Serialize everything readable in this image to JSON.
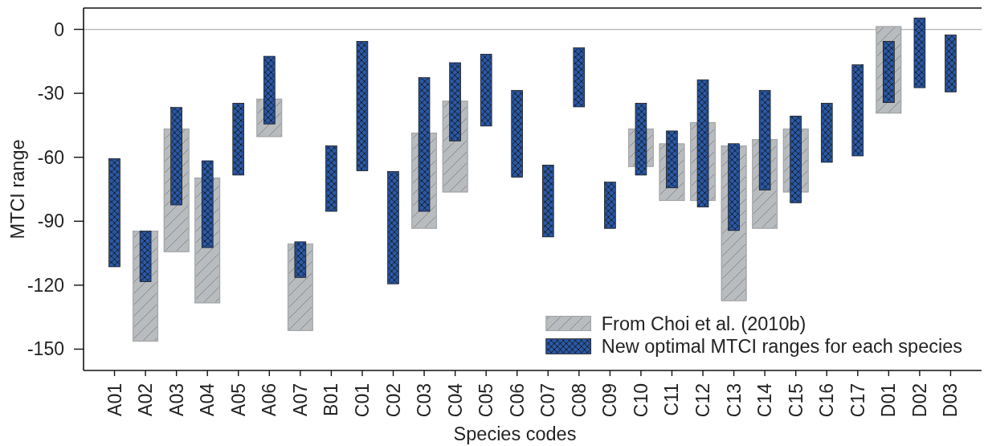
{
  "chart_data": {
    "type": "bar",
    "xlabel": "Species codes",
    "ylabel": "MTCI range",
    "categories": [
      "A01",
      "A02",
      "A03",
      "A04",
      "A05",
      "A06",
      "A07",
      "B01",
      "C01",
      "C02",
      "C03",
      "C04",
      "C05",
      "C06",
      "C07",
      "C08",
      "C09",
      "C10",
      "C11",
      "C12",
      "C13",
      "C14",
      "C15",
      "C16",
      "C17",
      "D01",
      "D02",
      "D03"
    ],
    "series": [
      {
        "name": "From Choi et al. (2010b)",
        "color": "#b9bcbf",
        "base": [
          null,
          -146,
          -104,
          -128,
          null,
          -50,
          -141,
          null,
          null,
          null,
          -93,
          -76,
          null,
          null,
          null,
          null,
          null,
          -64,
          -80,
          -80,
          -127,
          -93,
          -76,
          null,
          null,
          -39,
          null,
          null
        ],
        "values": [
          null,
          51,
          57,
          58,
          null,
          17,
          40,
          null,
          null,
          null,
          44,
          42,
          null,
          null,
          null,
          null,
          null,
          17,
          26,
          36,
          72,
          41,
          29,
          null,
          null,
          40,
          null,
          null
        ]
      },
      {
        "name": "New optimal MTCI ranges for each species",
        "color": "#2c5aa8",
        "base": [
          -111,
          -118,
          -82,
          -102,
          -68,
          -44,
          -116,
          -85,
          -66,
          -119,
          -85,
          -52,
          -45,
          -69,
          -97,
          -36,
          -93,
          -68,
          -74,
          -83,
          -94,
          -75,
          -81,
          -62,
          -59,
          -34,
          -27,
          -29
        ],
        "values": [
          50,
          23,
          45,
          40,
          33,
          31,
          16,
          30,
          60,
          52,
          62,
          36,
          33,
          40,
          33,
          27,
          21,
          33,
          26,
          59,
          40,
          46,
          40,
          27,
          42,
          28,
          32,
          26
        ]
      }
    ],
    "ylim": [
      -160,
      10
    ],
    "yticks": [
      0,
      -30,
      -60,
      -90,
      -120,
      -150
    ],
    "legend": "bottom right",
    "ref_lines": [
      {
        "axis": "y",
        "value": 0,
        "color": "#b3b3b3"
      }
    ]
  }
}
